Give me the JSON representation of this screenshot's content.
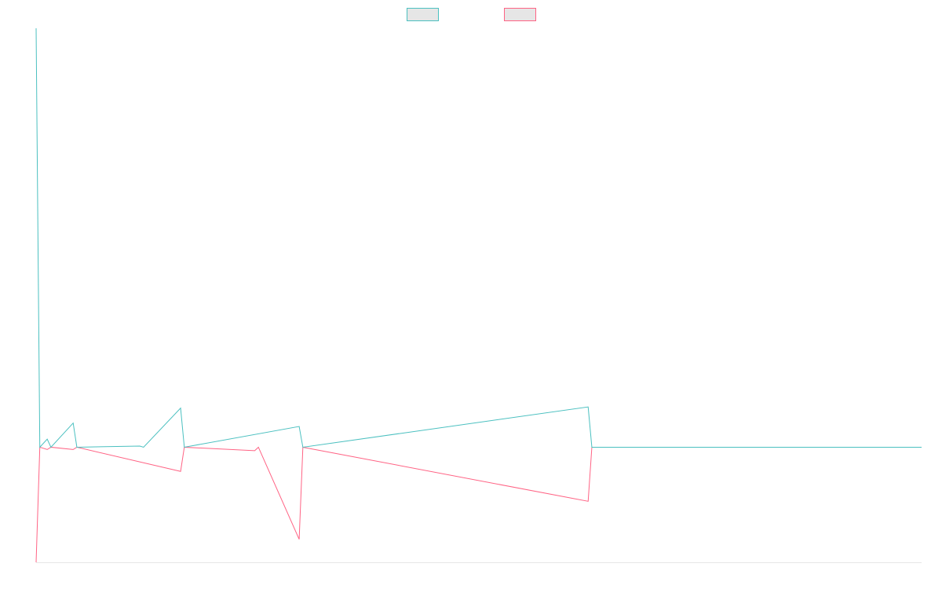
{
  "chart_data": {
    "type": "line",
    "title": "",
    "xlabel": "",
    "ylabel": "",
    "grid": false,
    "legend_position": "top-center",
    "x_count": 240,
    "ylim": [
      -100,
      364
    ],
    "series": [
      {
        "name": "",
        "color": "#4bc0c0",
        "fill": "#e6e6e6",
        "points": [
          [
            0,
            364
          ],
          [
            1,
            0
          ],
          [
            3,
            7
          ],
          [
            4,
            0
          ],
          [
            10,
            21
          ],
          [
            11,
            0
          ],
          [
            28,
            1
          ],
          [
            29,
            0
          ],
          [
            39,
            34
          ],
          [
            40,
            0
          ],
          [
            71,
            18
          ],
          [
            72,
            0
          ],
          [
            149,
            35
          ],
          [
            150,
            0
          ],
          [
            239,
            0
          ]
        ]
      },
      {
        "name": "",
        "color": "#ff6384",
        "fill": "#e6e6e6",
        "points": [
          [
            0,
            -100
          ],
          [
            1,
            0
          ],
          [
            3,
            -2
          ],
          [
            4,
            0
          ],
          [
            10,
            -2
          ],
          [
            11,
            0
          ],
          [
            39,
            -21
          ],
          [
            40,
            0
          ],
          [
            59,
            -3
          ],
          [
            60,
            0
          ],
          [
            71,
            -80
          ],
          [
            72,
            0
          ],
          [
            149,
            -47
          ],
          [
            150,
            0
          ],
          [
            239,
            0
          ]
        ]
      }
    ]
  }
}
